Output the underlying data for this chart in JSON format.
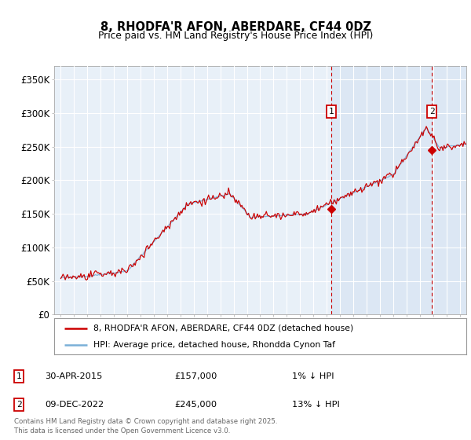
{
  "title": "8, RHODFA'R AFON, ABERDARE, CF44 0DZ",
  "subtitle": "Price paid vs. HM Land Registry's House Price Index (HPI)",
  "background_color": "#ffffff",
  "plot_bg_color": "#e8f0f8",
  "shaded_bg_color": "#dde8f5",
  "legend_line1": "8, RHODFA'R AFON, ABERDARE, CF44 0DZ (detached house)",
  "legend_line2": "HPI: Average price, detached house, Rhondda Cynon Taf",
  "annotation1": {
    "label": "1",
    "date": "30-APR-2015",
    "price": "£157,000",
    "note": "1% ↓ HPI"
  },
  "annotation2": {
    "label": "2",
    "date": "09-DEC-2022",
    "price": "£245,000",
    "note": "13% ↓ HPI"
  },
  "footer": "Contains HM Land Registry data © Crown copyright and database right 2025.\nThis data is licensed under the Open Government Licence v3.0.",
  "ylim": [
    0,
    370000
  ],
  "yticks": [
    0,
    50000,
    100000,
    150000,
    200000,
    250000,
    300000,
    350000
  ],
  "ytick_labels": [
    "£0",
    "£50K",
    "£100K",
    "£150K",
    "£200K",
    "£250K",
    "£300K",
    "£350K"
  ],
  "hpi_color": "#7ab0d8",
  "price_color": "#cc0000",
  "vline_color": "#cc0000",
  "marker1_x": 2015.33,
  "marker1_y": 157000,
  "marker2_x": 2022.92,
  "marker2_y": 245000,
  "xlim_left": 1994.5,
  "xlim_right": 2025.5
}
